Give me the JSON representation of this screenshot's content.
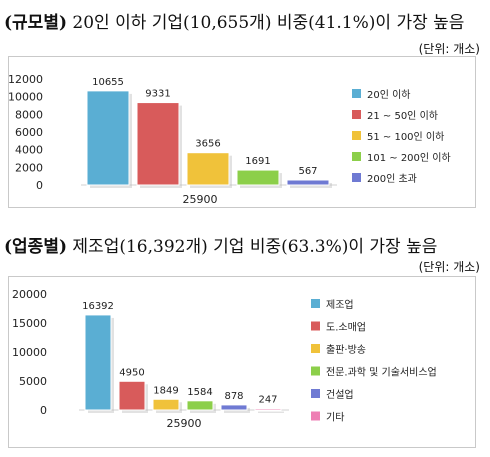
{
  "section1": {
    "heading_lead": "(규모별)",
    "heading_rest": " 20인 이하 기업(10,655개) 비중(41.1%)이 가장 높음",
    "unit": "(단위: 개소)"
  },
  "section2": {
    "heading_lead": "(업종별)",
    "heading_rest": " 제조업(16,392개) 기업 비중(63.3%)이 가장 높음",
    "unit": "(단위: 개소)"
  },
  "chart_data": [
    {
      "type": "bar",
      "categories": [
        "20인 이하",
        "21 ~ 50인 이하",
        "51 ~ 100인 이하",
        "101 ~ 200인 이하",
        "200인 초과"
      ],
      "values": [
        10655,
        9331,
        3656,
        1691,
        567
      ],
      "colors": [
        "#5aaed3",
        "#d85b5b",
        "#f0c23a",
        "#8ccf4a",
        "#6f7ad3"
      ],
      "yticks": [
        0,
        2000,
        4000,
        6000,
        8000,
        10000,
        12000
      ],
      "ylim": [
        0,
        12000
      ],
      "total_label": "25900",
      "legend_position": "right",
      "grid": false
    },
    {
      "type": "bar",
      "categories": [
        "제조업",
        "도.소매업",
        "출판·방송",
        "전문.과학 및 기술서비스업",
        "건설업",
        "기타"
      ],
      "values": [
        16392,
        4950,
        1849,
        1584,
        878,
        247
      ],
      "colors": [
        "#5aaed3",
        "#d85b5b",
        "#f0c23a",
        "#8ccf4a",
        "#6f7ad3",
        "#ee7fb4"
      ],
      "yticks": [
        0,
        5000,
        10000,
        15000,
        20000
      ],
      "ylim": [
        0,
        20000
      ],
      "total_label": "25900",
      "legend_position": "right",
      "grid": false
    }
  ]
}
